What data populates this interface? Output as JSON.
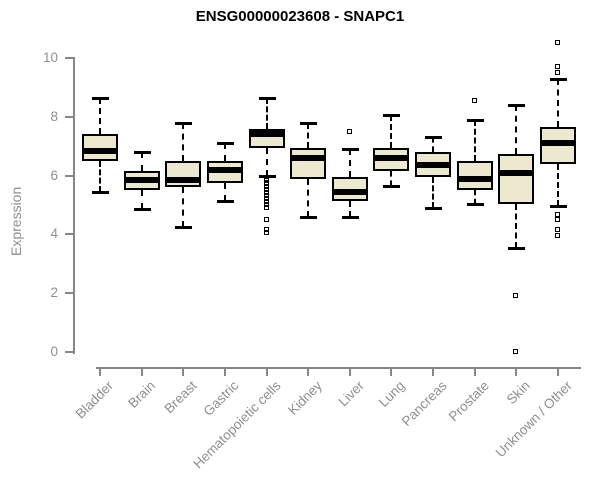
{
  "chart_data": {
    "type": "boxplot",
    "title": "ENSG00000023608 - SNAPC1",
    "ylabel": "Expression",
    "xlabel": "",
    "ylim": [
      0,
      10
    ],
    "yticks": [
      0,
      2,
      4,
      6,
      8,
      10
    ],
    "grid": false,
    "legend": null,
    "categories": [
      "Bladder",
      "Brain",
      "Breast",
      "Gastric",
      "Hematopoietic cells",
      "Kidney",
      "Liver",
      "Lung",
      "Pancreas",
      "Prostate",
      "Skin",
      "Unknown / Other"
    ],
    "boxes": [
      {
        "category": "Bladder",
        "whisker_low": 5.45,
        "q1": 6.5,
        "median": 6.85,
        "q3": 7.4,
        "whisker_high": 8.65,
        "outliers": []
      },
      {
        "category": "Brain",
        "whisker_low": 4.85,
        "q1": 5.5,
        "median": 5.85,
        "q3": 6.15,
        "whisker_high": 6.8,
        "outliers": []
      },
      {
        "category": "Breast",
        "whisker_low": 4.25,
        "q1": 5.6,
        "median": 5.85,
        "q3": 6.5,
        "whisker_high": 7.8,
        "outliers": []
      },
      {
        "category": "Gastric",
        "whisker_low": 5.15,
        "q1": 5.75,
        "median": 6.2,
        "q3": 6.5,
        "whisker_high": 7.1,
        "outliers": []
      },
      {
        "category": "Hematopoietic cells",
        "whisker_low": 6.0,
        "q1": 6.95,
        "median": 7.4,
        "q3": 7.6,
        "whisker_high": 8.65,
        "outliers": [
          5.9,
          5.8,
          5.7,
          5.6,
          5.5,
          5.4,
          5.3,
          5.2,
          5.1,
          5.0,
          4.9,
          4.5,
          4.15,
          4.05
        ]
      },
      {
        "category": "Kidney",
        "whisker_low": 4.6,
        "q1": 5.9,
        "median": 6.6,
        "q3": 6.95,
        "whisker_high": 7.8,
        "outliers": []
      },
      {
        "category": "Liver",
        "whisker_low": 4.6,
        "q1": 5.15,
        "median": 5.45,
        "q3": 5.95,
        "whisker_high": 6.9,
        "outliers": [
          7.5
        ]
      },
      {
        "category": "Lung",
        "whisker_low": 5.65,
        "q1": 6.15,
        "median": 6.6,
        "q3": 6.95,
        "whisker_high": 8.05,
        "outliers": []
      },
      {
        "category": "Pancreas",
        "whisker_low": 4.9,
        "q1": 5.95,
        "median": 6.35,
        "q3": 6.8,
        "whisker_high": 7.3,
        "outliers": []
      },
      {
        "category": "Prostate",
        "whisker_low": 5.05,
        "q1": 5.5,
        "median": 5.9,
        "q3": 6.5,
        "whisker_high": 7.9,
        "outliers": [
          8.55
        ]
      },
      {
        "category": "Skin",
        "whisker_low": 3.55,
        "q1": 5.05,
        "median": 6.1,
        "q3": 6.75,
        "whisker_high": 8.4,
        "outliers": [
          1.9,
          0.0
        ]
      },
      {
        "category": "Unknown / Other",
        "whisker_low": 4.95,
        "q1": 6.4,
        "median": 7.1,
        "q3": 7.65,
        "whisker_high": 9.3,
        "outliers": [
          10.5,
          9.7,
          9.5,
          4.65,
          4.5,
          4.15,
          3.95
        ]
      }
    ],
    "colors": {
      "box_fill": "#EDE8D0",
      "box_border": "#000000",
      "median": "#000000",
      "whisker": "#000000",
      "outlier": "#000000",
      "axis": "#878787",
      "tick_label": "#8F8F8F",
      "title": "#000000",
      "background": "#FFFFFF"
    }
  }
}
